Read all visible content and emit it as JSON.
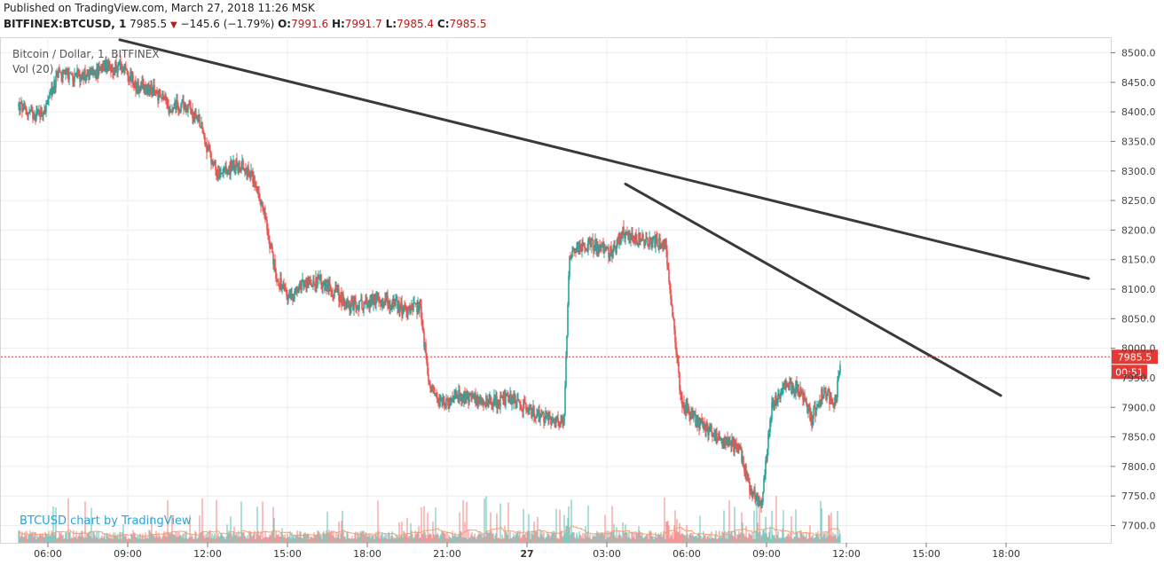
{
  "header": {
    "published": "Published on TradingView.com, March 27, 2018 11:26 MSK",
    "symbol": "BITFINEX:BTCUSD, 1",
    "last": "7985.5",
    "change": "−145.6 (−1.79%)",
    "o_label": "O:",
    "o_value": "7991.6",
    "h_label": "H:",
    "h_value": "7991.7",
    "l_label": "L:",
    "l_value": "7985.4",
    "c_label": "C:",
    "c_value": "7985.5"
  },
  "legend": {
    "title": "Bitcoin / Dollar, 1, BITFINEX",
    "volume": "Vol (20)"
  },
  "branding": "BTCUSD chart by TradingView",
  "price_tag": {
    "value": "7985.5",
    "countdown": "00:51",
    "color": "#e53935"
  },
  "colors": {
    "up": "#26a69a",
    "down": "#ef5350",
    "trendline": "#3a3a3a",
    "grid": "#eeeeee",
    "vol_ma": "#f0a070"
  },
  "chart_data": {
    "type": "candlestick",
    "ylim": [
      7675,
      8515
    ],
    "y_ticks": [
      8500,
      8450,
      8400,
      8350,
      8300,
      8250,
      8200,
      8150,
      8100,
      8050,
      8000,
      7950,
      7900,
      7850,
      7800,
      7750,
      7700
    ],
    "y_tick_labels": [
      "8500.0",
      "8450.0",
      "8400.0",
      "8350.0",
      "8300.0",
      "8250.0",
      "8200.0",
      "8150.0",
      "8100.0",
      "8050.0",
      "8000.0",
      "7950.0",
      "7900.0",
      "7850.0",
      "7800.0",
      "7750.0",
      "7700.0"
    ],
    "x_hours": [
      6,
      9,
      12,
      15,
      18,
      21,
      24,
      27,
      30,
      33,
      36,
      39,
      42
    ],
    "x_tick_labels": [
      "06:00",
      "09:00",
      "12:00",
      "15:00",
      "18:00",
      "21:00",
      "27",
      "03:00",
      "06:00",
      "09:00",
      "12:00",
      "15:00",
      "18:00"
    ],
    "xlim_hours": [
      4.8,
      46.6
    ],
    "last_price": 7985.5,
    "price_path": [
      [
        4.9,
        8410
      ],
      [
        5.4,
        8395
      ],
      [
        5.9,
        8405
      ],
      [
        6.4,
        8465
      ],
      [
        7.0,
        8460
      ],
      [
        7.6,
        8465
      ],
      [
        8.2,
        8470
      ],
      [
        8.8,
        8480
      ],
      [
        9.3,
        8445
      ],
      [
        10.0,
        8435
      ],
      [
        10.6,
        8410
      ],
      [
        11.2,
        8410
      ],
      [
        11.7,
        8385
      ],
      [
        12.1,
        8320
      ],
      [
        12.5,
        8290
      ],
      [
        13.0,
        8310
      ],
      [
        13.5,
        8305
      ],
      [
        13.9,
        8270
      ],
      [
        14.2,
        8210
      ],
      [
        14.6,
        8120
      ],
      [
        15.0,
        8085
      ],
      [
        15.6,
        8110
      ],
      [
        16.2,
        8115
      ],
      [
        16.7,
        8100
      ],
      [
        17.2,
        8075
      ],
      [
        17.7,
        8070
      ],
      [
        18.2,
        8080
      ],
      [
        18.7,
        8080
      ],
      [
        19.4,
        8065
      ],
      [
        20.0,
        8070
      ],
      [
        20.3,
        7940
      ],
      [
        20.8,
        7905
      ],
      [
        21.4,
        7920
      ],
      [
        22.0,
        7915
      ],
      [
        22.8,
        7910
      ],
      [
        23.5,
        7915
      ],
      [
        24.1,
        7895
      ],
      [
        24.6,
        7885
      ],
      [
        25.0,
        7880
      ],
      [
        25.4,
        7880
      ],
      [
        25.6,
        8160
      ],
      [
        26.1,
        8175
      ],
      [
        26.6,
        8175
      ],
      [
        27.2,
        8160
      ],
      [
        27.6,
        8195
      ],
      [
        28.2,
        8185
      ],
      [
        28.8,
        8180
      ],
      [
        29.2,
        8180
      ],
      [
        29.5,
        8040
      ],
      [
        29.8,
        7910
      ],
      [
        30.3,
        7880
      ],
      [
        30.9,
        7860
      ],
      [
        31.5,
        7840
      ],
      [
        32.0,
        7830
      ],
      [
        32.4,
        7760
      ],
      [
        32.8,
        7735
      ],
      [
        33.2,
        7900
      ],
      [
        33.6,
        7930
      ],
      [
        34.2,
        7935
      ],
      [
        34.7,
        7880
      ],
      [
        35.1,
        7925
      ],
      [
        35.6,
        7910
      ],
      [
        35.8,
        7985
      ]
    ],
    "trendlines": [
      {
        "from": [
          8.7,
          8522
        ],
        "to": [
          45.1,
          8118
        ]
      },
      {
        "from": [
          27.7,
          8278
        ],
        "to": [
          41.8,
          7920
        ]
      }
    ]
  }
}
